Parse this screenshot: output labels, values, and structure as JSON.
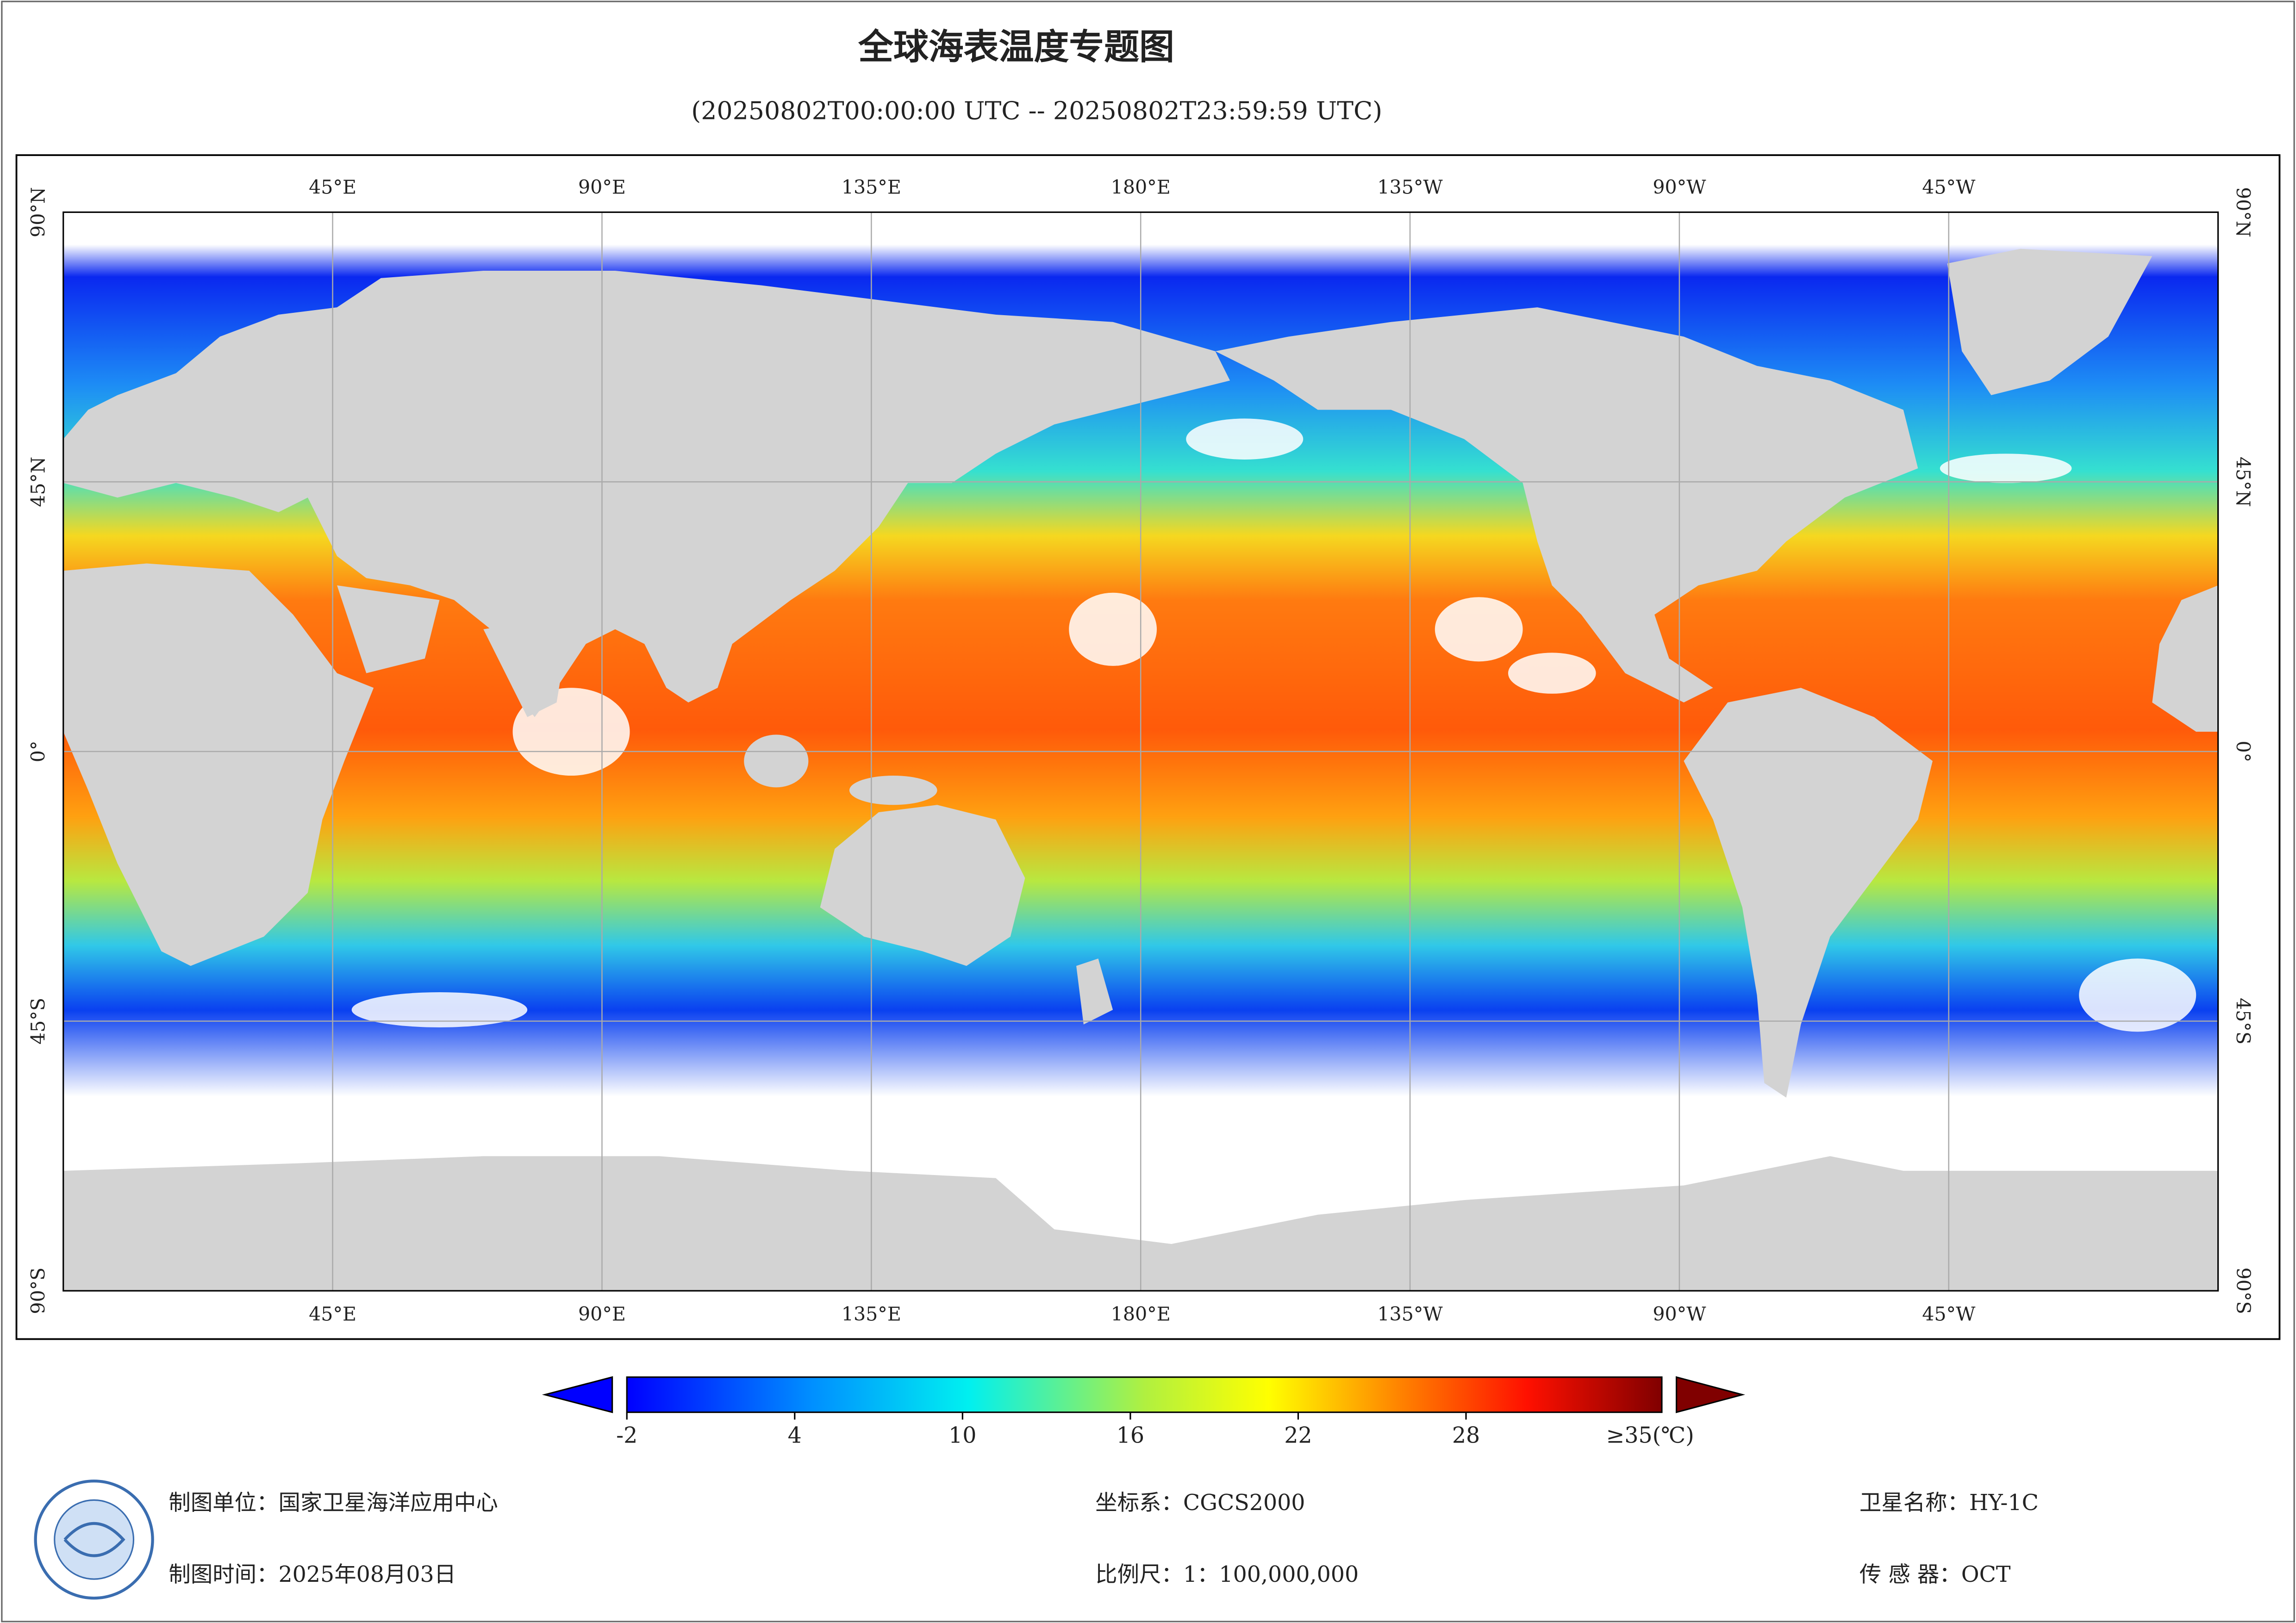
{
  "title": "全球海表温度专题图",
  "subtitle": "(20250802T00:00:00 UTC -- 20250802T23:59:59 UTC)",
  "map": {
    "lon_range": [
      0,
      360
    ],
    "lat_range": [
      -90,
      90
    ],
    "lon_ticks": [
      {
        "value": 45,
        "label": "45°E"
      },
      {
        "value": 90,
        "label": "90°E"
      },
      {
        "value": 135,
        "label": "135°E"
      },
      {
        "value": 180,
        "label": "180°E"
      },
      {
        "value": 225,
        "label": "135°W"
      },
      {
        "value": 270,
        "label": "90°W"
      },
      {
        "value": 315,
        "label": "45°W"
      }
    ],
    "lat_ticks": [
      {
        "value": 90,
        "label": "90°N"
      },
      {
        "value": 45,
        "label": "45°N"
      },
      {
        "value": 0,
        "label": "0°"
      },
      {
        "value": -45,
        "label": "45°S"
      },
      {
        "value": -90,
        "label": "90°S"
      }
    ]
  },
  "colorbar": {
    "range": [
      -2,
      35
    ],
    "ticks": [
      -2,
      4,
      10,
      16,
      22,
      28
    ],
    "max_label": "≥35(℃)"
  },
  "footer": {
    "unit": "制图单位：国家卫星海洋应用中心",
    "crs": "坐标系：CGCS2000",
    "satellite": "卫星名称：HY-1C",
    "date": "制图时间：2025年08月03日",
    "scale": "比例尺：1：100,000,000",
    "sensor": "传 感 器：OCT"
  }
}
